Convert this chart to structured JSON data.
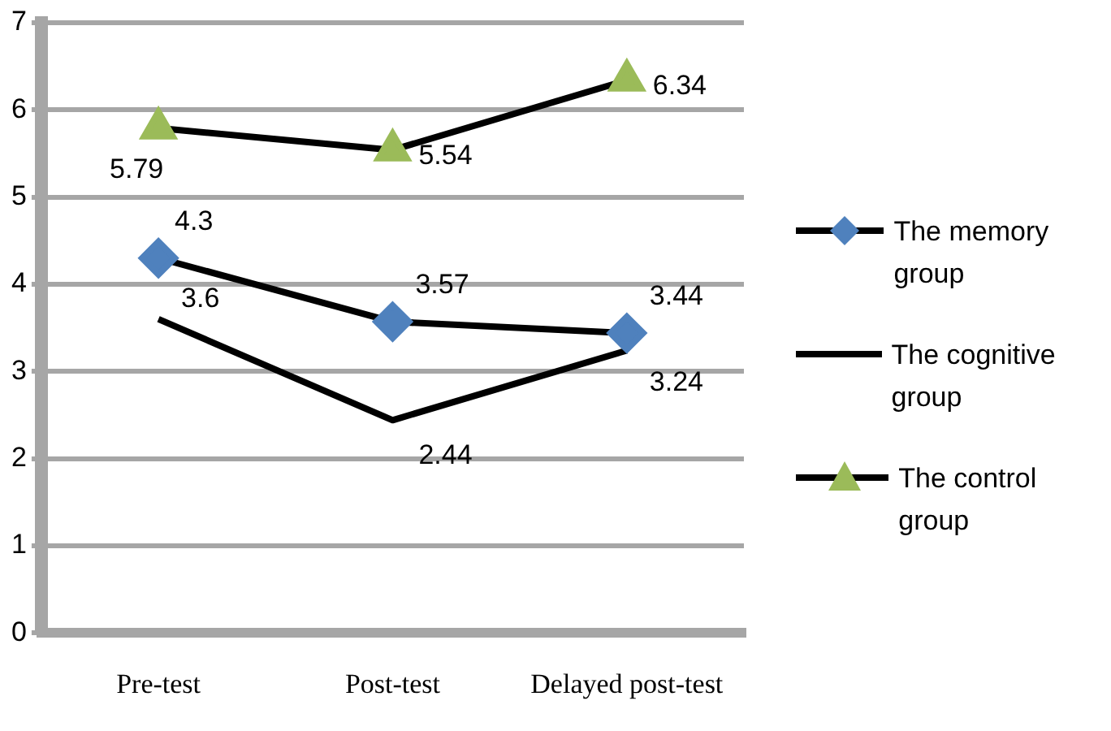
{
  "chart_data": {
    "type": "line",
    "categories": [
      "Pre-test",
      "Post-test",
      "Delayed post-test"
    ],
    "series": [
      {
        "name": "The memory group",
        "color": "#4f81bd",
        "marker": "diamond",
        "values": [
          4.3,
          3.57,
          3.44
        ]
      },
      {
        "name": "The cognitive group",
        "color": "#000000",
        "marker": "none",
        "values": [
          3.6,
          2.44,
          3.24
        ]
      },
      {
        "name": "The control group",
        "color": "#9bbb59",
        "marker": "triangle",
        "values": [
          5.79,
          5.54,
          6.34
        ]
      }
    ],
    "ylim": [
      0,
      7
    ],
    "yticks": [
      0,
      1,
      2,
      3,
      4,
      5,
      6,
      7
    ],
    "grid": "y",
    "legend": "right",
    "data_labels": true
  }
}
